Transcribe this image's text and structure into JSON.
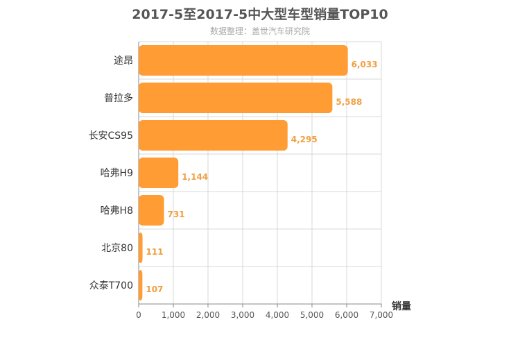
{
  "chart_data": {
    "type": "bar",
    "orientation": "horizontal",
    "title": "2017-5至2017-5中大型车型销量TOP10",
    "subtitle": "数据整理：盖世汽车研究院",
    "categories": [
      "途昂",
      "普拉多",
      "长安CS95",
      "哈弗H9",
      "哈弗H8",
      "北京80",
      "众泰T700"
    ],
    "values": [
      6033,
      5588,
      4295,
      1144,
      731,
      111,
      107
    ],
    "value_labels": [
      "6,033",
      "5,588",
      "4,295",
      "1,144",
      "731",
      "111",
      "107"
    ],
    "x_ticks": [
      "0",
      "1,000",
      "2,000",
      "3,000",
      "4,000",
      "5,000",
      "6,000",
      "7,000"
    ],
    "xlim": [
      0,
      7000
    ],
    "xlabel": "销量",
    "ylabel": "",
    "grid": true,
    "bar_color": "#ff9c33",
    "label_color": "#f0a040"
  }
}
